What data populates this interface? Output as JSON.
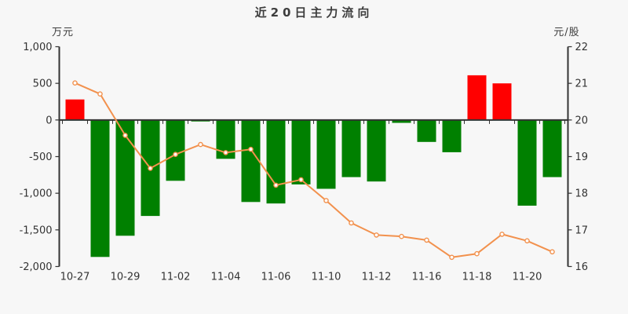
{
  "title": "近20日主力流向",
  "axes": {
    "left": {
      "unit": "万元",
      "tick_labels": [
        "1,000",
        "500",
        "0",
        "-500",
        "-1,000",
        "-1,500",
        "-2,000"
      ],
      "tick_values": [
        1000,
        500,
        0,
        -500,
        -1000,
        -1500,
        -2000
      ],
      "range": [
        -2000,
        1000
      ]
    },
    "right": {
      "unit": "元/股",
      "tick_labels": [
        "22",
        "21",
        "20",
        "19",
        "18",
        "17",
        "16"
      ],
      "tick_values": [
        22,
        21,
        20,
        19,
        18,
        17,
        16
      ],
      "range": [
        16,
        22
      ]
    }
  },
  "colors": {
    "inflow_bar": "#ff0000",
    "outflow_bar": "#008000",
    "price_line": "#f2914d",
    "marker_fill": "#ffffff",
    "axis_line": "#333333",
    "tick_text": "#333333",
    "title_text": "#3d3d3d",
    "background": "#f7f7f7"
  },
  "chart_data": {
    "type": "bar+line",
    "n_slots": 20,
    "x_labels": [
      {
        "label": "10-27",
        "slot": 0
      },
      {
        "label": "10-29",
        "slot": 2
      },
      {
        "label": "11-02",
        "slot": 4
      },
      {
        "label": "11-04",
        "slot": 6
      },
      {
        "label": "11-06",
        "slot": 8
      },
      {
        "label": "11-10",
        "slot": 10
      },
      {
        "label": "11-12",
        "slot": 12
      },
      {
        "label": "11-16",
        "slot": 14
      },
      {
        "label": "11-18",
        "slot": 16
      },
      {
        "label": "11-20",
        "slot": 18
      }
    ],
    "bar_series": {
      "axis": "left",
      "unit": "万元",
      "values": [
        280,
        -1870,
        -1580,
        -1310,
        -830,
        -20,
        -530,
        -1120,
        -1140,
        -880,
        -940,
        -780,
        -840,
        -40,
        -300,
        -440,
        610,
        500,
        -1170,
        -780
      ]
    },
    "line_series": {
      "axis": "right",
      "unit": "元/股",
      "values": [
        21.01,
        20.71,
        19.58,
        18.68,
        19.06,
        19.33,
        19.11,
        19.2,
        18.22,
        18.37,
        17.8,
        17.19,
        16.86,
        16.82,
        16.72,
        16.25,
        16.35,
        16.88,
        16.7,
        16.4
      ]
    },
    "left_ylim": [
      -2000,
      1000
    ],
    "right_ylim": [
      16,
      22
    ],
    "grid": false,
    "legend": false
  }
}
